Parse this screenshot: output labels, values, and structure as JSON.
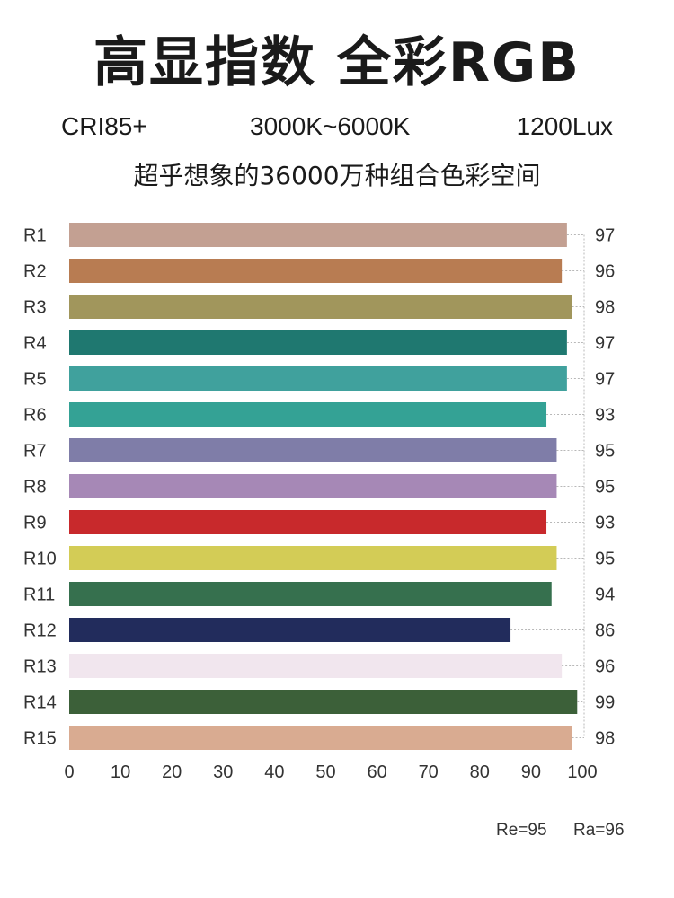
{
  "header": {
    "title": "高显指数 全彩RGB",
    "spec_cri": "CRI85+",
    "spec_cct": "3000K~6000K",
    "spec_lux": "1200Lux",
    "subtitle": "超乎想象的36000万种组合色彩空间"
  },
  "footer": {
    "re": "Re=95",
    "ra": "Ra=96"
  },
  "chart_data": {
    "type": "bar",
    "orientation": "horizontal",
    "categories": [
      "R1",
      "R2",
      "R3",
      "R4",
      "R5",
      "R6",
      "R7",
      "R8",
      "R9",
      "R10",
      "R11",
      "R12",
      "R13",
      "R14",
      "R15"
    ],
    "values": [
      97,
      96,
      98,
      97,
      97,
      93,
      95,
      95,
      93,
      95,
      94,
      86,
      96,
      99,
      98
    ],
    "value_labels": [
      "97",
      "96",
      "98",
      "97",
      "97",
      "93",
      "95",
      "95",
      "93",
      "95",
      "94",
      "86",
      "96",
      "99",
      "98"
    ],
    "bar_colors": [
      "#c3a092",
      "#b87c52",
      "#a1965c",
      "#1f7870",
      "#40a19d",
      "#34a295",
      "#7f7da8",
      "#a688b6",
      "#c8292c",
      "#d3cc56",
      "#36704e",
      "#222c5c",
      "#f1e6ee",
      "#3c6039",
      "#d9ab91"
    ],
    "xlim": [
      0,
      100
    ],
    "xticks": [
      "0",
      "10",
      "20",
      "30",
      "40",
      "50",
      "60",
      "70",
      "80",
      "90",
      "100"
    ],
    "title": "",
    "xlabel": "",
    "ylabel": "",
    "grid": false,
    "legend": "none"
  }
}
